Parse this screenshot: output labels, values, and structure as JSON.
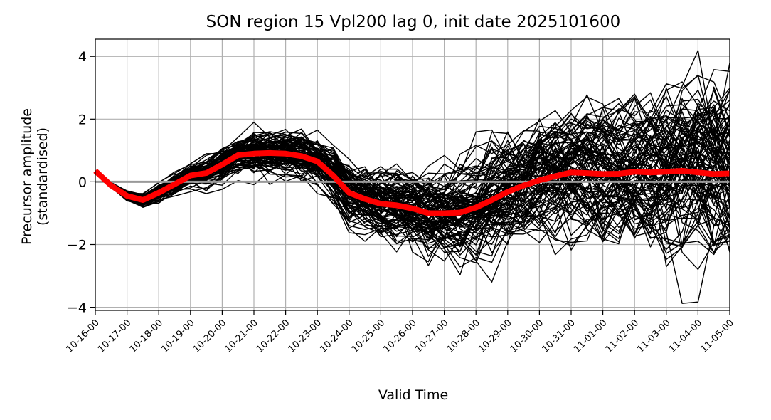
{
  "chart_data": {
    "type": "line",
    "title": "SON region 15 Vpl200 lag 0, init date 2025101600",
    "xlabel": "Valid Time",
    "ylabel_lines": [
      "Precursor amplitude",
      "(standardised)"
    ],
    "ylim": [
      -4.1,
      4.55
    ],
    "yticks": [
      -4,
      -2,
      0,
      2,
      4
    ],
    "ytick_labels": [
      "−4",
      "−2",
      "0",
      "2",
      "4"
    ],
    "xticks": [
      "10-16-00",
      "10-17-00",
      "10-18-00",
      "10-19-00",
      "10-20-00",
      "10-21-00",
      "10-22-00",
      "10-23-00",
      "10-24-00",
      "10-25-00",
      "10-26-00",
      "10-27-00",
      "10-28-00",
      "10-29-00",
      "10-30-00",
      "10-31-00",
      "11-01-00",
      "11-02-00",
      "11-03-00",
      "11-04-00",
      "11-05-00"
    ],
    "grid": true,
    "reference_line": {
      "y": 0,
      "color": "#999999"
    },
    "ensemble_color": "#000000",
    "mean_color": "#ff0000",
    "ensemble_members": 100,
    "step_days": 0.5,
    "ensemble_mean": [
      0.35,
      -0.12,
      -0.45,
      -0.58,
      -0.35,
      -0.08,
      0.2,
      0.28,
      0.55,
      0.85,
      0.9,
      0.92,
      0.9,
      0.82,
      0.65,
      0.2,
      -0.35,
      -0.55,
      -0.7,
      -0.75,
      -0.85,
      -1.0,
      -1.0,
      -0.98,
      -0.82,
      -0.58,
      -0.32,
      -0.12,
      0.05,
      0.18,
      0.3,
      0.28,
      0.25,
      0.26,
      0.32,
      0.3,
      0.32,
      0.35,
      0.3,
      0.25,
      0.27
    ],
    "ensemble_spread": [
      0.0,
      0.05,
      0.1,
      0.12,
      0.18,
      0.2,
      0.22,
      0.26,
      0.3,
      0.33,
      0.38,
      0.4,
      0.42,
      0.44,
      0.48,
      0.52,
      0.58,
      0.62,
      0.68,
      0.72,
      0.78,
      0.82,
      0.86,
      0.9,
      0.95,
      1.0,
      1.05,
      1.1,
      1.15,
      1.2,
      1.25,
      1.3,
      1.35,
      1.4,
      1.45,
      1.5,
      1.55,
      1.6,
      1.65,
      1.7,
      1.75
    ]
  }
}
